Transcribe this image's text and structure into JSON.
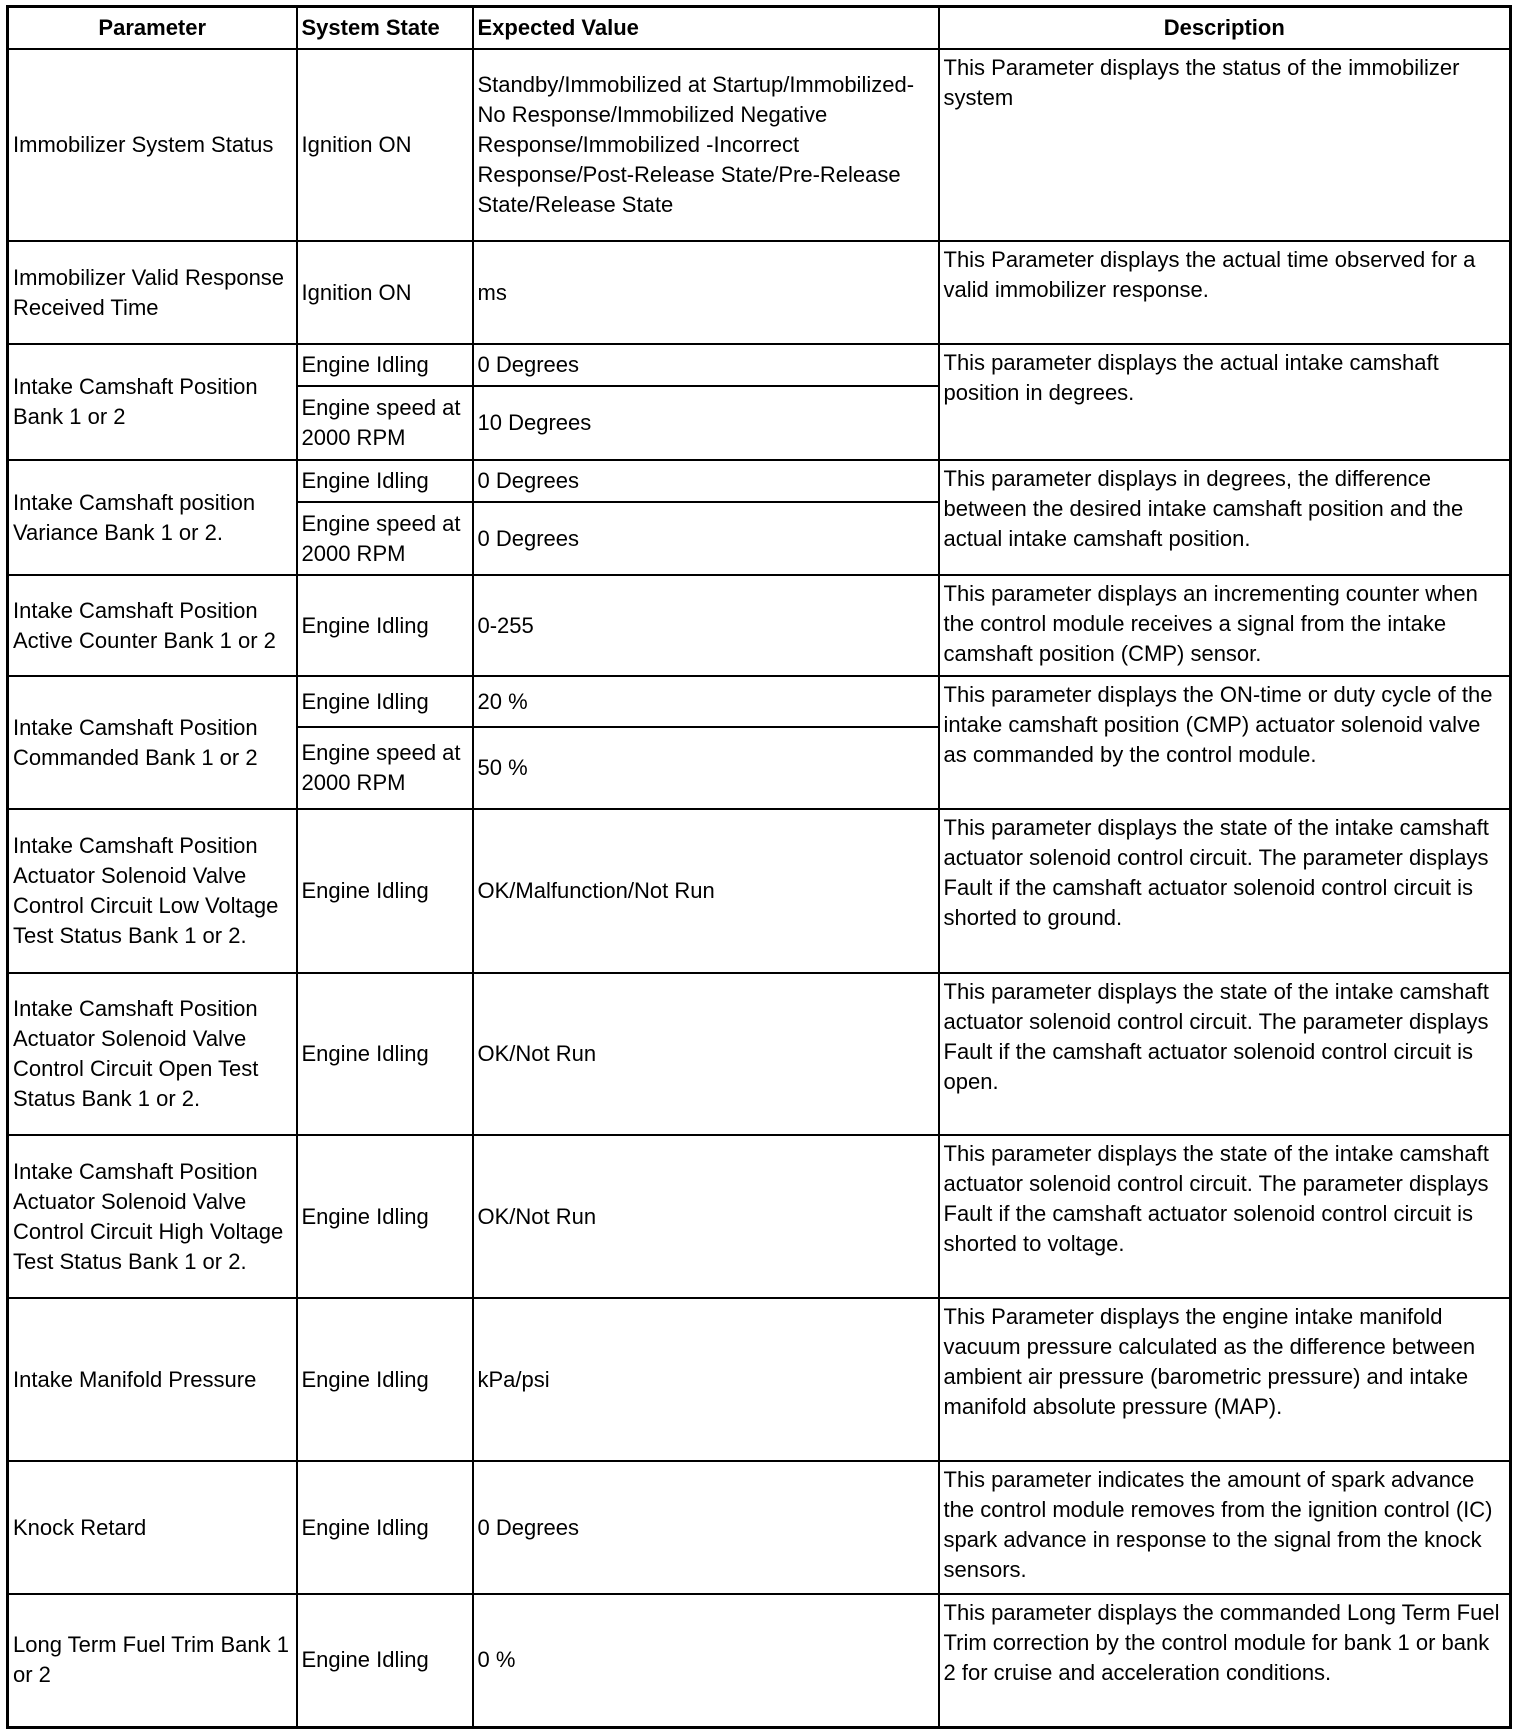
{
  "headers": [
    "Parameter",
    "System State",
    "Expected Value",
    "Description"
  ],
  "rows": [
    {
      "parameter": "Immobilizer System Status",
      "states": [
        {
          "state": "Ignition ON",
          "value": "Standby/Immobilized at Startup/Immobilized-No Response/Immobilized Negative Response/Immobilized -Incorrect Response/Post-Release State/Pre-Release State/Release State"
        }
      ],
      "description": "This Parameter displays the status of the immobilizer system"
    },
    {
      "parameter": "Immobilizer Valid Response Received Time",
      "states": [
        {
          "state": "Ignition ON",
          "value": "ms"
        }
      ],
      "description": "This Parameter displays the actual time observed for a valid immobilizer response."
    },
    {
      "parameter": "Intake Camshaft Position Bank 1 or 2",
      "states": [
        {
          "state": "Engine Idling",
          "value": "0 Degrees"
        },
        {
          "state": "Engine speed at 2000 RPM",
          "value": "10 Degrees"
        }
      ],
      "description": "This parameter displays the actual intake camshaft position in degrees."
    },
    {
      "parameter": "Intake Camshaft position Variance Bank 1 or 2.",
      "states": [
        {
          "state": "Engine Idling",
          "value": "0 Degrees"
        },
        {
          "state": "Engine speed at 2000 RPM",
          "value": "0 Degrees"
        }
      ],
      "description": "This parameter displays in degrees, the difference between the desired intake camshaft position and the actual intake camshaft position."
    },
    {
      "parameter": "Intake Camshaft Position Active Counter Bank 1 or 2",
      "states": [
        {
          "state": "Engine Idling",
          "value": "0-255"
        }
      ],
      "description": "This parameter displays an incrementing counter when the control module receives a signal from the intake camshaft position (CMP) sensor."
    },
    {
      "parameter": "Intake Camshaft Position Commanded Bank 1 or 2",
      "states": [
        {
          "state": "Engine Idling",
          "value": "20 %"
        },
        {
          "state": "Engine speed at 2000 RPM",
          "value": "50 %"
        }
      ],
      "description": "This parameter displays the ON-time or duty cycle of the intake camshaft position (CMP) actuator solenoid valve as commanded by the control module."
    },
    {
      "parameter": "Intake Camshaft Position Actuator Solenoid Valve Control Circuit Low Voltage Test Status Bank 1 or 2.",
      "states": [
        {
          "state": "Engine Idling",
          "value": "OK/Malfunction/Not Run"
        }
      ],
      "description": "This parameter displays the state of the intake camshaft actuator solenoid control circuit. The parameter displays Fault if the camshaft actuator solenoid control circuit is shorted to ground."
    },
    {
      "parameter": "Intake Camshaft Position Actuator Solenoid Valve Control Circuit Open Test Status Bank 1 or 2.",
      "states": [
        {
          "state": "Engine Idling",
          "value": "OK/Not Run"
        }
      ],
      "description": "This parameter displays the state of the intake camshaft actuator solenoid control circuit. The parameter displays Fault if the camshaft actuator solenoid control circuit is open."
    },
    {
      "parameter": "Intake Camshaft Position Actuator Solenoid Valve Control Circuit High Voltage Test Status Bank 1 or 2.",
      "states": [
        {
          "state": "Engine Idling",
          "value": "OK/Not Run"
        }
      ],
      "description": "This parameter displays the state of the intake camshaft actuator solenoid control circuit. The parameter displays Fault if the camshaft actuator solenoid control circuit is shorted to voltage."
    },
    {
      "parameter": "Intake Manifold Pressure",
      "states": [
        {
          "state": "Engine Idling",
          "value": "kPa/psi"
        }
      ],
      "description": "This Parameter displays the engine intake manifold vacuum pressure calculated as the difference between ambient air pressure (barometric pressure) and intake manifold absolute pressure (MAP)."
    },
    {
      "parameter": "Knock Retard",
      "states": [
        {
          "state": "Engine Idling",
          "value": "0 Degrees"
        }
      ],
      "description": "This parameter indicates the amount of spark advance the control module removes from the ignition control (IC) spark advance in response to the signal from the knock sensors."
    },
    {
      "parameter": "Long Term Fuel Trim Bank 1 or 2",
      "states": [
        {
          "state": "Engine Idling",
          "value": "0 %"
        }
      ],
      "description": "This parameter displays the commanded Long Term Fuel Trim correction by the control module for bank 1 or bank 2 for cruise and acceleration conditions."
    }
  ]
}
